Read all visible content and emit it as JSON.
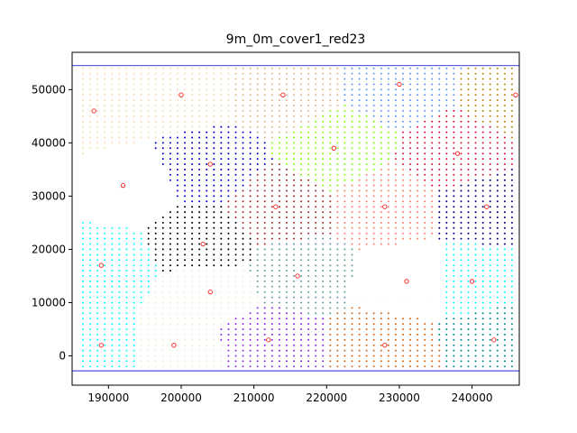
{
  "chart_data": {
    "type": "scatter",
    "title": "9m_0m_cover1_red23",
    "xlabel": "",
    "ylabel": "",
    "xlim": [
      185000,
      246500
    ],
    "ylim": [
      -5500,
      57000
    ],
    "xticks": [
      190000,
      200000,
      210000,
      220000,
      230000,
      240000
    ],
    "xtick_labels": [
      "190000",
      "200000",
      "210000",
      "220000",
      "230000",
      "240000"
    ],
    "yticks": [
      0,
      10000,
      20000,
      30000,
      40000,
      50000
    ],
    "ytick_labels": [
      "0",
      "10000",
      "20000",
      "30000",
      "40000",
      "50000"
    ],
    "grid": false,
    "boundary_lines_y": [
      54500,
      -2800
    ],
    "boundary_line_color": "#0000cc",
    "grid_spacing": 1000,
    "extent": {
      "x": [
        186500,
        246000
      ],
      "y": [
        -2000,
        54000
      ]
    },
    "clusters": [
      {
        "color": "#f5deb3",
        "center": [
          200000,
          49000
        ]
      },
      {
        "color": "#f5deb3",
        "center": [
          188000,
          46000
        ]
      },
      {
        "color": "#f0ffff",
        "center": [
          192000,
          32000
        ]
      },
      {
        "color": "#00ffff",
        "center": [
          189000,
          17000
        ]
      },
      {
        "color": "#00ffff",
        "center": [
          189000,
          2000
        ]
      },
      {
        "color": "#faebd7",
        "center": [
          199000,
          2000
        ]
      },
      {
        "color": "#000000",
        "center": [
          203000,
          21000
        ]
      },
      {
        "color": "#faebd7",
        "center": [
          204000,
          12000
        ]
      },
      {
        "color": "#0000cd",
        "center": [
          204000,
          36000
        ]
      },
      {
        "color": "#deb887",
        "center": [
          214000,
          49000
        ]
      },
      {
        "color": "#a52a2a",
        "center": [
          213000,
          28000
        ]
      },
      {
        "color": "#7fff00",
        "center": [
          221000,
          39000
        ]
      },
      {
        "color": "#6495ed",
        "center": [
          230000,
          51000
        ]
      },
      {
        "color": "#b8860b",
        "center": [
          246000,
          49000
        ]
      },
      {
        "color": "#dc143c",
        "center": [
          238000,
          38000
        ]
      },
      {
        "color": "#fa8072",
        "center": [
          228000,
          28000
        ]
      },
      {
        "color": "#000080",
        "center": [
          242000,
          28000
        ]
      },
      {
        "color": "#5f9ea0",
        "center": [
          216000,
          15000
        ]
      },
      {
        "color": "#fffaf0",
        "center": [
          231000,
          14000
        ]
      },
      {
        "color": "#00ffff",
        "center": [
          240000,
          14000
        ]
      },
      {
        "color": "#8a2be2",
        "center": [
          212000,
          3000
        ]
      },
      {
        "color": "#d2691e",
        "center": [
          228000,
          2000
        ]
      },
      {
        "color": "#008b8b",
        "center": [
          243000,
          3000
        ]
      }
    ],
    "center_marker_color": "#ff0000"
  }
}
